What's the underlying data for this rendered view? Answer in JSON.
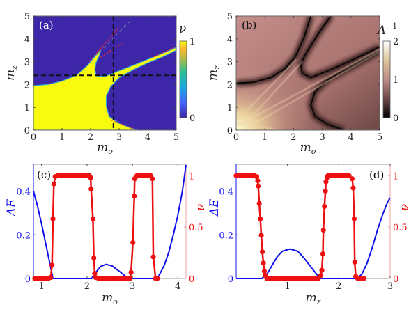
{
  "colors": {
    "parula_low": "#3e26a8",
    "parula_high": "#f9fb0e",
    "delta_e": "#1010ee",
    "nu": "#ee1010"
  },
  "chart_data": [
    {
      "panel": "(a)",
      "type": "heatmap",
      "xlabel": {
        "base": "m",
        "sub": "o"
      },
      "ylabel": {
        "base": "m",
        "sub": "z"
      },
      "xlim": [
        0,
        5
      ],
      "ylim": [
        0,
        5
      ],
      "xticks": [
        "0",
        "1",
        "2",
        "3",
        "4",
        "5"
      ],
      "yticks": [
        "0",
        "1",
        "2",
        "3",
        "4",
        "5"
      ],
      "colorbar": {
        "label": "ν",
        "range": [
          0,
          1
        ],
        "ticks": [
          "0",
          "1"
        ],
        "colormap": "parula"
      },
      "dashed_lines": {
        "x": 2.8,
        "y": 2.4
      },
      "description_values": "ν=1 region (yellow) lower-left with two branches; ν=0 elsewhere"
    },
    {
      "panel": "(b)",
      "type": "heatmap",
      "xlabel": {
        "base": "m",
        "sub": "o"
      },
      "ylabel": {
        "base": "m",
        "sub": "z"
      },
      "xlim": [
        0,
        5
      ],
      "ylim": [
        0,
        5
      ],
      "xticks": [
        "0",
        "1",
        "2",
        "3",
        "4",
        "5"
      ],
      "yticks": [
        "0",
        "1",
        "2",
        "3",
        "4",
        "5"
      ],
      "colorbar": {
        "label": {
          "base": "Λ",
          "sup": "−1"
        },
        "range": [
          0,
          2
        ],
        "ticks": [
          "0",
          "1",
          "2"
        ],
        "colormap": "pink"
      }
    },
    {
      "panel": "(c)",
      "type": "line",
      "xlabel": {
        "base": "m",
        "sub": "o"
      },
      "ylabel_left": "ΔE",
      "ylabel_right": "ν",
      "xlim": [
        0.82,
        4.18
      ],
      "ylim_left": [
        0,
        0.523
      ],
      "ylim_right": [
        0,
        1.11
      ],
      "xticks": [
        1,
        2,
        3,
        4
      ],
      "yticks_left": [
        0,
        0.2,
        0.4
      ],
      "yticks_right": [
        0,
        0.5,
        1
      ],
      "ytick_labels_left": [
        "0",
        "0.2",
        "0.4"
      ],
      "ytick_labels_right": [
        "0",
        "0.5",
        "1"
      ],
      "delta_e": {
        "x": [
          0.82,
          0.9,
          1.0,
          1.1,
          1.2,
          1.25,
          2.1,
          2.2,
          2.3,
          2.42,
          2.55,
          2.7,
          2.85,
          2.95,
          3.55,
          3.7,
          3.8,
          3.9,
          4.0,
          4.1,
          4.18
        ],
        "y": [
          0.4,
          0.34,
          0.25,
          0.15,
          0.05,
          0,
          0,
          0.03,
          0.055,
          0.065,
          0.058,
          0.035,
          0.01,
          0,
          0,
          0.06,
          0.12,
          0.2,
          0.29,
          0.4,
          0.52
        ]
      },
      "nu": {
        "x": [
          0.85,
          0.9,
          0.95,
          1.0,
          1.05,
          1.1,
          1.15,
          1.2,
          1.23,
          1.25,
          1.27,
          1.3,
          1.35,
          1.4,
          1.45,
          1.5,
          1.55,
          1.6,
          1.65,
          1.7,
          1.75,
          1.8,
          1.85,
          1.9,
          1.95,
          2.0,
          2.05,
          2.08,
          2.09,
          2.13,
          2.15,
          2.17,
          2.19,
          2.25,
          2.3,
          2.35,
          2.4,
          2.45,
          2.5,
          2.55,
          2.6,
          2.65,
          2.7,
          2.75,
          2.8,
          2.85,
          2.9,
          2.95,
          2.97,
          3.01,
          3.04,
          3.05,
          3.08,
          3.1,
          3.15,
          3.2,
          3.25,
          3.3,
          3.35,
          3.4,
          3.44,
          3.46,
          3.51,
          3.55
        ],
        "y": [
          0,
          0,
          0,
          0,
          0,
          0,
          0,
          0.01,
          0.13,
          0.58,
          0.92,
          0.99,
          1,
          1,
          1,
          1,
          1,
          1,
          1,
          1,
          1,
          1,
          1,
          1,
          1,
          1,
          1,
          0.98,
          0.87,
          0.58,
          0.2,
          0.05,
          0.01,
          0,
          0,
          0,
          0,
          0,
          0,
          0,
          0,
          0,
          0,
          0,
          0,
          0,
          0,
          0,
          0.06,
          0.35,
          0.8,
          0.97,
          0.99,
          1,
          1,
          1,
          1,
          1,
          1,
          1,
          0.97,
          0.21,
          0,
          0
        ]
      }
    },
    {
      "panel": "(d)",
      "type": "line",
      "xlabel": {
        "base": "m",
        "sub": "z"
      },
      "ylabel_left": "ΔE",
      "ylabel_right": "ν",
      "xlim": [
        0,
        3
      ],
      "ylim_left": [
        0,
        0.523
      ],
      "ylim_right": [
        0,
        1.11
      ],
      "xticks": [
        1,
        2,
        3
      ],
      "yticks_left": [
        0,
        0.2,
        0.4
      ],
      "yticks_right": [
        0,
        0.5,
        1
      ],
      "ytick_labels_left": [
        "0",
        "0.2",
        "0.4"
      ],
      "ytick_labels_right": [
        "0",
        "0.5",
        "1"
      ],
      "delta_e": {
        "x": [
          0,
          0.5,
          0.6,
          0.7,
          0.8,
          0.9,
          1.05,
          1.2,
          1.3,
          1.4,
          1.5,
          1.6,
          1.65,
          2.35,
          2.45,
          2.55,
          2.65,
          2.75,
          2.85,
          2.95,
          3.0
        ],
        "y": [
          0,
          0,
          0.02,
          0.06,
          0.1,
          0.125,
          0.135,
          0.125,
          0.1,
          0.07,
          0.04,
          0.01,
          0,
          0,
          0.02,
          0.07,
          0.14,
          0.22,
          0.29,
          0.35,
          0.37
        ]
      },
      "nu": {
        "x": [
          0,
          0.05,
          0.1,
          0.15,
          0.2,
          0.25,
          0.3,
          0.35,
          0.4,
          0.42,
          0.43,
          0.45,
          0.47,
          0.49,
          0.51,
          0.53,
          0.55,
          0.57,
          0.6,
          0.65,
          0.7,
          0.75,
          0.8,
          0.85,
          0.9,
          0.95,
          1.0,
          1.05,
          1.1,
          1.15,
          1.2,
          1.25,
          1.3,
          1.35,
          1.4,
          1.45,
          1.5,
          1.55,
          1.6,
          1.65,
          1.67,
          1.69,
          1.7,
          1.72,
          1.74,
          1.75,
          1.77,
          1.79,
          1.85,
          1.9,
          1.95,
          2.0,
          2.05,
          2.1,
          2.15,
          2.2,
          2.26,
          2.28,
          2.3,
          2.31,
          2.33,
          2.37,
          2.42,
          2.49
        ],
        "y": [
          1,
          1,
          1,
          1,
          1,
          1,
          1,
          1,
          0.99,
          0.95,
          0.9,
          0.73,
          0.58,
          0.42,
          0.26,
          0.15,
          0.07,
          0.03,
          0,
          0,
          0,
          0,
          0,
          0,
          0,
          0,
          0,
          0,
          0,
          0,
          0,
          0,
          0,
          0,
          0,
          0,
          0,
          0,
          0,
          0.03,
          0.08,
          0.24,
          0.47,
          0.7,
          0.85,
          0.94,
          0.98,
          1,
          1,
          1,
          1,
          1,
          1,
          1,
          1,
          1,
          0.97,
          0.88,
          0.58,
          0.16,
          0.02,
          0,
          0,
          0
        ]
      }
    }
  ]
}
